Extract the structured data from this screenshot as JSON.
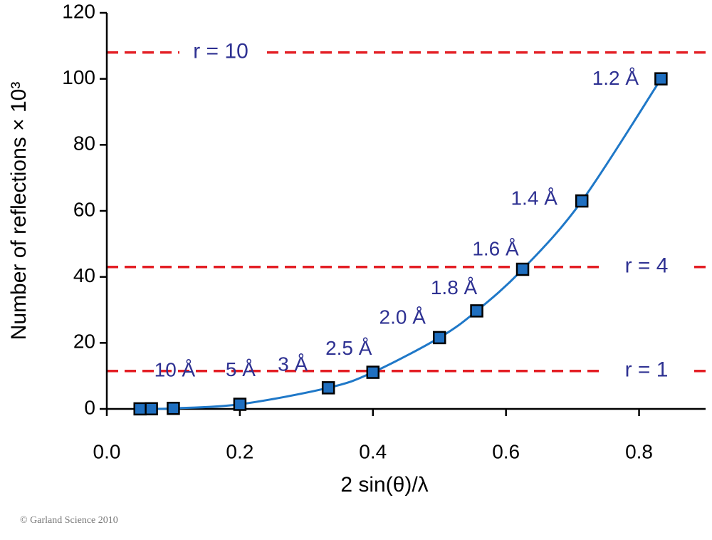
{
  "chart_data": {
    "type": "scatter",
    "x_label": "2 sin(θ)/λ",
    "y_label": "Number of reflections × 10³",
    "xlim": [
      0,
      0.9
    ],
    "ylim": [
      0,
      120
    ],
    "xticks": [
      {
        "value": 0,
        "label": "0.0"
      },
      0.2,
      0.4,
      0.6,
      0.8
    ],
    "yticks": [
      0,
      20,
      40,
      60,
      80,
      100,
      120
    ],
    "series": [
      {
        "color": "#1f6fc0",
        "line_color": "#1f78c8",
        "x": [
          0.05,
          0.067,
          0.1,
          0.2,
          0.333,
          0.4,
          0.5,
          0.556,
          0.625,
          0.714,
          0.833
        ],
        "values": [
          0.02,
          0.05,
          0.17,
          1.4,
          6.4,
          11.1,
          21.6,
          29.7,
          42.3,
          63.0,
          100.0
        ],
        "point_labels": [
          null,
          null,
          "10 Å",
          "5 Å",
          "3 Å",
          "2.5 Å",
          "2.0 Å",
          "1.8 Å",
          "1.6 Å",
          "1.4 Å",
          "1.2 Å"
        ]
      }
    ],
    "reference_lines": [
      {
        "value": 108,
        "label": "r = 10",
        "color": "#e31e24"
      },
      {
        "value": 43,
        "label": "r = 4",
        "color": "#e31e24"
      },
      {
        "value": 11.5,
        "label": "r = 1",
        "color": "#e31e24"
      }
    ],
    "copyright": "© Garland Science 2010"
  }
}
